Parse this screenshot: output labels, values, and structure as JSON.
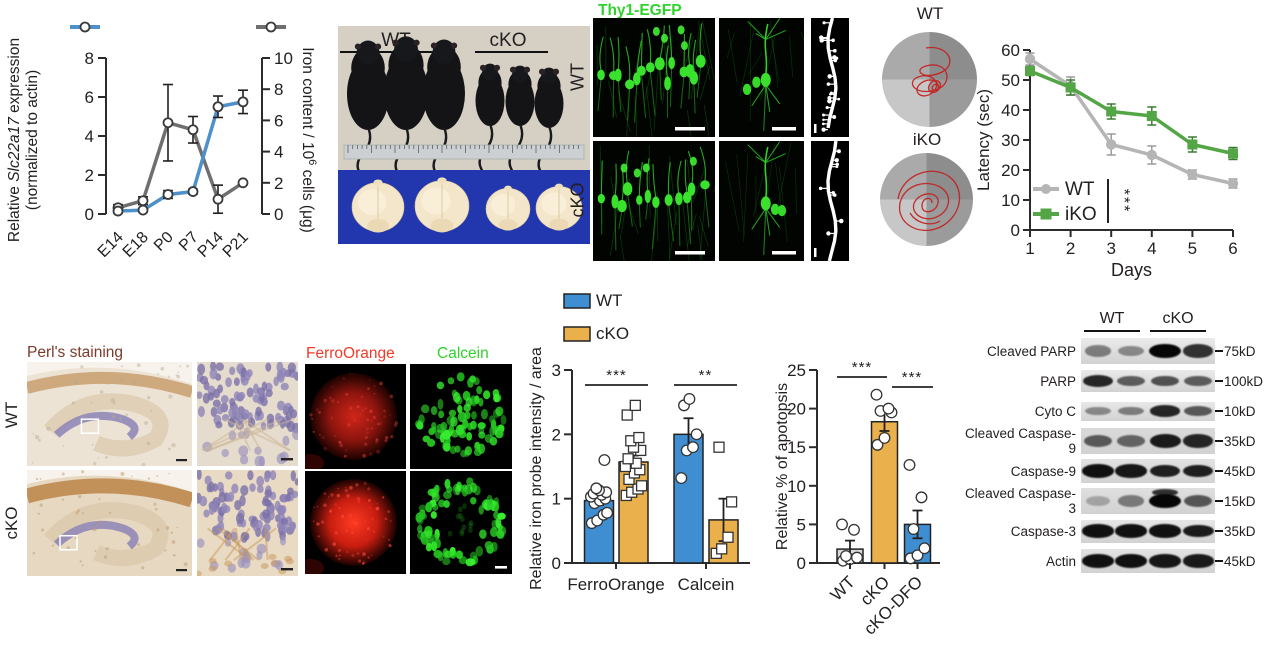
{
  "colors": {
    "blue": "#3f8ed2",
    "orange": "#e9b04c",
    "green": "#53a546",
    "gray_line": "#b5b5b5",
    "dark_gray_line": "#6f6f6f",
    "chart_blue_line": "#4e90c9",
    "axis": "#2b2b2b",
    "wt_bar_gray": "#d9d9d9",
    "thy1_label_green": "#2ed32b",
    "ferro_label_red": "#ef3b28",
    "calcein_label_green": "#2ed32b",
    "perls_label_brown": "#7a3b2a",
    "maze_path_red": "#c32222",
    "brain_tray_blue": "#2236ad",
    "mouse_photo_bg": "#d6d0c4"
  },
  "panels": {
    "expression": {
      "left_label": {
        "pre": "Relative ",
        "gene": "Slc22a17",
        "post": " expression",
        "line2": "(normalized to actin)"
      },
      "right_label": {
        "base": "Iron content / 10",
        "sup": "6",
        "rest": " cells (μg)"
      }
    },
    "mice": {
      "wt": "WT",
      "cko": "cKO"
    },
    "thy1": {
      "title": "Thy1-EGFP",
      "wt": "WT",
      "cko": "cKO"
    },
    "maze": {
      "wt": "WT",
      "iko": "iKO"
    },
    "perls": {
      "title": "Perl's staining",
      "wt": "WT",
      "cko": "cKO"
    },
    "probes": {
      "ferro": "FerroOrange",
      "calcein": "Calcein"
    },
    "blots": {
      "headers": [
        "WT",
        "cKO"
      ],
      "rows": [
        {
          "label": "Cleaved PARP",
          "mw": "75kD",
          "bands": [
            0.45,
            0.4,
            1.0,
            0.8
          ]
        },
        {
          "label": "PARP",
          "mw": "100kD",
          "bands": [
            0.85,
            0.6,
            0.65,
            0.6
          ]
        },
        {
          "label": "Cyto C",
          "mw": "10kD",
          "bands": [
            0.4,
            0.45,
            0.85,
            0.62
          ]
        },
        {
          "label": "Cleaved Caspase-9",
          "mw": "35kD",
          "bands": [
            0.6,
            0.55,
            0.9,
            0.85
          ]
        },
        {
          "label": "Caspase-9",
          "mw": "45kD",
          "bands": [
            0.95,
            0.92,
            0.88,
            0.88
          ]
        },
        {
          "label": "Cleaved Caspase-3",
          "mw": "15kD",
          "bands": [
            0.25,
            0.45,
            1.0,
            0.62
          ],
          "extra_lane": 2
        },
        {
          "label": "Caspase-3",
          "mw": "35kD",
          "bands": [
            0.95,
            0.95,
            0.95,
            0.9
          ]
        },
        {
          "label": "Actin",
          "mw": "45kD",
          "bands": [
            0.95,
            0.95,
            0.92,
            0.9
          ]
        }
      ]
    }
  },
  "chart_data": [
    {
      "type": "line",
      "name": "slc22a17-expression-vs-iron",
      "x_categories": [
        "E14",
        "E18",
        "P0",
        "P7",
        "P14",
        "P21"
      ],
      "left_axis": {
        "label": "Relative Slc22a17 expression (normalized to actin)",
        "range": [
          0,
          8
        ],
        "ticks": [
          0,
          2,
          4,
          6,
          8
        ]
      },
      "right_axis": {
        "label": "Iron content / 10⁶ cells (μg)",
        "range": [
          0,
          10
        ],
        "ticks": [
          0,
          2,
          4,
          6,
          8,
          10
        ]
      },
      "series": [
        {
          "name": "Slc22a17 expression",
          "axis": "left",
          "color": "#4e90c9",
          "marker": "circle",
          "values": [
            0.15,
            0.2,
            1.0,
            1.15,
            5.5,
            5.75
          ],
          "errors": [
            0.1,
            0.05,
            0.2,
            0.12,
            0.55,
            0.6
          ]
        },
        {
          "name": "Iron content",
          "axis": "right",
          "color": "#6f6f6f",
          "marker": "circle",
          "values": [
            0.4,
            0.85,
            5.85,
            5.4,
            0.95,
            2.0
          ],
          "errors": [
            0.2,
            0.25,
            2.45,
            0.85,
            0.9,
            0
          ]
        }
      ],
      "grid": false,
      "legend_position": "top"
    },
    {
      "type": "line",
      "name": "morris-water-maze-latency",
      "xlabel": "Days",
      "ylabel": "Latency (sec)",
      "x": [
        1,
        2,
        3,
        4,
        5,
        6
      ],
      "ylim": [
        0,
        60
      ],
      "yticks": [
        0,
        10,
        20,
        30,
        40,
        50,
        60
      ],
      "series": [
        {
          "name": "WT",
          "color": "#b5b5b5",
          "marker": "circle",
          "values": [
            57,
            48,
            28.5,
            25,
            18.5,
            15.5
          ],
          "errors": [
            2,
            3,
            3.5,
            3,
            1.5,
            1.5
          ]
        },
        {
          "name": "iKO",
          "color": "#53a546",
          "marker": "square",
          "values": [
            53,
            47.5,
            39.5,
            38,
            28.5,
            25.5
          ],
          "errors": [
            1.5,
            2.5,
            2.5,
            3,
            2.5,
            2
          ]
        }
      ],
      "significance": "***",
      "grid": false,
      "legend_position": "inside-bottom-left"
    },
    {
      "type": "bar",
      "name": "iron-probe-intensity",
      "ylabel": "Relative iron probe intensity / area",
      "ylim": [
        0,
        3
      ],
      "yticks": [
        0,
        1,
        2,
        3
      ],
      "categories": [
        "FerroOrange",
        "Calcein"
      ],
      "series": [
        {
          "name": "WT",
          "color": "#3f8ed2",
          "marker": "circle",
          "values": [
            0.97,
            2.0
          ],
          "errors": [
            0.07,
            0.25
          ],
          "points": [
            [
              0.62,
              0.66,
              0.75,
              0.78,
              0.93,
              0.97,
              1.0,
              1.03,
              1.06,
              1.08,
              1.1,
              1.13,
              1.16,
              1.6
            ],
            [
              1.32,
              1.75,
              1.8,
              2.0,
              2.45,
              2.55
            ]
          ]
        },
        {
          "name": "cKO",
          "color": "#e9b04c",
          "marker": "square",
          "values": [
            1.57,
            0.67
          ],
          "errors": [
            0.1,
            0.33
          ],
          "points": [
            [
              1.05,
              1.1,
              1.15,
              1.2,
              1.3,
              1.4,
              1.45,
              1.5,
              1.55,
              1.62,
              1.75,
              1.8,
              1.9,
              1.95,
              2.3,
              2.45
            ],
            [
              0.15,
              0.22,
              0.4,
              0.95,
              1.8
            ]
          ]
        }
      ],
      "significance": [
        {
          "category": "FerroOrange",
          "label": "***"
        },
        {
          "category": "Calcein",
          "label": "**"
        }
      ],
      "grid": false,
      "legend_position": "top"
    },
    {
      "type": "bar",
      "name": "apoptosis-percentage",
      "ylabel": "Relative % of apotopsis",
      "ylim": [
        0,
        25
      ],
      "yticks": [
        0,
        5,
        10,
        15,
        20,
        25
      ],
      "categories": [
        "WT",
        "cKO",
        "cKO-DFO"
      ],
      "values": [
        1.8,
        18.3,
        5.0
      ],
      "errors": [
        1.1,
        1.2,
        1.8
      ],
      "bar_colors": [
        "#d9d9d9",
        "#e9b04c",
        "#3f8ed2"
      ],
      "points": [
        [
          0.3,
          0.5,
          0.7,
          0.9,
          4.3,
          5.0
        ],
        [
          15.3,
          16.2,
          19.5,
          19.7,
          20.0,
          21.8
        ],
        [
          0.6,
          1.0,
          1.9,
          4.4,
          8.5,
          12.7
        ]
      ],
      "significance": [
        {
          "between": [
            "WT",
            "cKO"
          ],
          "label": "***"
        },
        {
          "between": [
            "cKO",
            "cKO-DFO"
          ],
          "label": "***"
        }
      ],
      "grid": false
    }
  ]
}
